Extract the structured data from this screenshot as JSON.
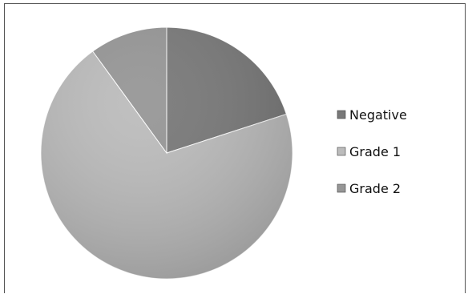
{
  "chart_data": {
    "type": "pie",
    "title": "",
    "categories": [
      "Negative",
      "Grade 1",
      "Grade 2"
    ],
    "values": [
      20,
      70,
      10
    ],
    "colors": [
      "#787878",
      "#bcbcbc",
      "#969696"
    ],
    "start_angle": "12 o'clock, clockwise",
    "legend_position": "right"
  }
}
